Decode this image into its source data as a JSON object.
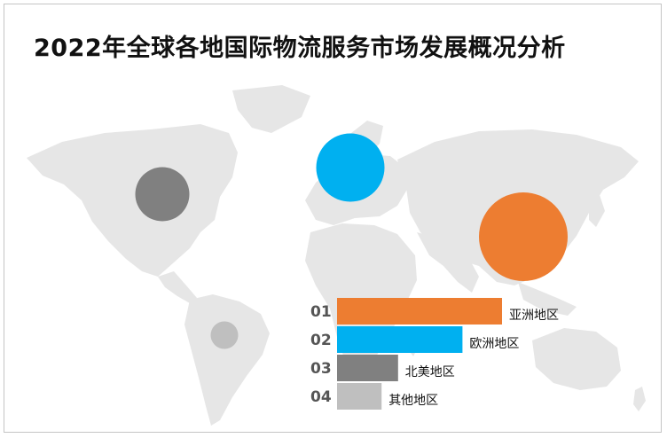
{
  "title": "2022年全球各地国际物流服务市场发展概况分析",
  "chart_data": {
    "type": "bar",
    "title": "2022年全球各地国际物流服务市场发展概况分析",
    "orientation": "horizontal",
    "background": "world-map",
    "categories": [
      "亚洲地区",
      "欧洲地区",
      "北美地区",
      "其他地区"
    ],
    "ranks": [
      "01",
      "02",
      "03",
      "04"
    ],
    "values": [
      1.0,
      0.76,
      0.37,
      0.27
    ],
    "colors": [
      "#ED7D31",
      "#00B0F0",
      "#808080",
      "#BFBFBF"
    ],
    "bubbles": [
      {
        "region": "亚洲地区",
        "relative_size": 1.0,
        "color": "#ED7D31"
      },
      {
        "region": "欧洲地区",
        "relative_size": 0.77,
        "color": "#00B0F0"
      },
      {
        "region": "北美地区",
        "relative_size": 0.61,
        "color": "#808080"
      },
      {
        "region": "其他地区",
        "relative_size": 0.31,
        "color": "#BFBFBF"
      }
    ],
    "xlabel": "",
    "ylabel": "",
    "grid": false,
    "legend": "none"
  },
  "colors": {
    "map": "#e6e6e6",
    "rank_text": "#555555",
    "label_text": "#111111"
  }
}
